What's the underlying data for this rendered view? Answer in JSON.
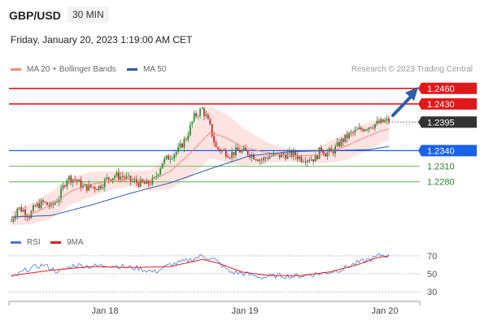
{
  "header": {
    "symbol": "GBP/USD",
    "timeframe": "30 MIN",
    "datetime": "Friday, January 20, 2023 1:19:00 AM CET",
    "credit": "Research © 2023 Trading Central"
  },
  "legend": {
    "main": [
      {
        "label": "MA 20 + Bollinger Bands",
        "color": "#f08a80"
      },
      {
        "label": "MA 50",
        "color": "#2e5aa8"
      }
    ],
    "rsi": [
      {
        "label": "RSI",
        "color": "#4a78d8"
      },
      {
        "label": "9MA",
        "color": "#e02020"
      }
    ]
  },
  "colors": {
    "up": "#2f8a3a",
    "down": "#c8282a",
    "ma20": "#f08a80",
    "band_fill": "#fde3e1",
    "ma50": "#2e5aa8",
    "resistance": "#e0181c",
    "pivot": "#1a62e8",
    "support": "#7fbf6f",
    "current": "#333333",
    "arrow": "#2c5fa3",
    "rsi": "#4a78d8",
    "rsi_ma": "#e02020"
  },
  "chart_data": [
    {
      "type": "candlestick",
      "title": "GBP/USD 30 MIN",
      "x_labels": [
        "Jan 18",
        "Jan 19",
        "Jan 20"
      ],
      "ylim": [
        1.2195,
        1.248
      ],
      "indicators": [
        "MA 20 + Bollinger Bands",
        "MA 50"
      ],
      "levels": [
        {
          "label": "1.2460",
          "value": 1.246,
          "kind": "resistance"
        },
        {
          "label": "1.2430",
          "value": 1.243,
          "kind": "resistance"
        },
        {
          "label": "1.2395",
          "value": 1.2395,
          "kind": "current"
        },
        {
          "label": "1.2340",
          "value": 1.234,
          "kind": "pivot"
        },
        {
          "label": "1.2310",
          "value": 1.231,
          "kind": "support"
        },
        {
          "label": "1.2280",
          "value": 1.228,
          "kind": "support"
        }
      ],
      "price_path": [
        [
          0,
          1.2204
        ],
        [
          3,
          1.223
        ],
        [
          6,
          1.2225
        ],
        [
          9,
          1.2215
        ],
        [
          12,
          1.2232
        ],
        [
          16,
          1.224
        ],
        [
          20,
          1.2232
        ],
        [
          24,
          1.225
        ],
        [
          28,
          1.2288
        ],
        [
          32,
          1.2285
        ],
        [
          36,
          1.227
        ],
        [
          40,
          1.227
        ],
        [
          44,
          1.227
        ],
        [
          48,
          1.2285
        ],
        [
          52,
          1.2292
        ],
        [
          56,
          1.229
        ],
        [
          60,
          1.2282
        ],
        [
          64,
          1.2278
        ],
        [
          68,
          1.2275
        ],
        [
          72,
          1.2284
        ],
        [
          76,
          1.2318
        ],
        [
          80,
          1.233
        ],
        [
          84,
          1.234
        ],
        [
          88,
          1.2365
        ],
        [
          92,
          1.2405
        ],
        [
          96,
          1.242
        ],
        [
          98,
          1.2405
        ],
        [
          100,
          1.2385
        ],
        [
          103,
          1.2345
        ],
        [
          106,
          1.234
        ],
        [
          110,
          1.2333
        ],
        [
          114,
          1.234
        ],
        [
          118,
          1.2338
        ],
        [
          122,
          1.233
        ],
        [
          126,
          1.2322
        ],
        [
          130,
          1.233
        ],
        [
          134,
          1.233
        ],
        [
          138,
          1.2332
        ],
        [
          142,
          1.2333
        ],
        [
          146,
          1.2325
        ],
        [
          150,
          1.2325
        ],
        [
          153,
          1.2325
        ],
        [
          156,
          1.2345
        ],
        [
          158,
          1.2335
        ],
        [
          162,
          1.234
        ],
        [
          166,
          1.2358
        ],
        [
          170,
          1.237
        ],
        [
          174,
          1.2378
        ],
        [
          178,
          1.2385
        ],
        [
          182,
          1.239
        ],
        [
          186,
          1.2394
        ],
        [
          190,
          1.2398
        ]
      ],
      "ma20_path": [
        [
          0,
          1.221
        ],
        [
          10,
          1.2218
        ],
        [
          20,
          1.2235
        ],
        [
          30,
          1.2262
        ],
        [
          40,
          1.2275
        ],
        [
          50,
          1.2282
        ],
        [
          60,
          1.2286
        ],
        [
          70,
          1.2282
        ],
        [
          80,
          1.23
        ],
        [
          90,
          1.2335
        ],
        [
          100,
          1.2375
        ],
        [
          108,
          1.2365
        ],
        [
          116,
          1.2348
        ],
        [
          126,
          1.2338
        ],
        [
          136,
          1.2332
        ],
        [
          146,
          1.233
        ],
        [
          156,
          1.2332
        ],
        [
          166,
          1.2345
        ],
        [
          176,
          1.2362
        ],
        [
          186,
          1.2378
        ],
        [
          190,
          1.2382
        ]
      ],
      "band_width_path": [
        [
          0,
          0.0014
        ],
        [
          10,
          0.002
        ],
        [
          20,
          0.0026
        ],
        [
          30,
          0.0026
        ],
        [
          40,
          0.0024
        ],
        [
          50,
          0.0018
        ],
        [
          60,
          0.0014
        ],
        [
          70,
          0.002
        ],
        [
          80,
          0.0034
        ],
        [
          90,
          0.0046
        ],
        [
          100,
          0.005
        ],
        [
          110,
          0.0045
        ],
        [
          120,
          0.0032
        ],
        [
          130,
          0.0018
        ],
        [
          140,
          0.0012
        ],
        [
          150,
          0.0012
        ],
        [
          160,
          0.002
        ],
        [
          170,
          0.0028
        ],
        [
          180,
          0.0026
        ],
        [
          190,
          0.0022
        ]
      ],
      "ma50_path": [
        [
          0,
          1.2212
        ],
        [
          20,
          1.2215
        ],
        [
          40,
          1.2235
        ],
        [
          60,
          1.2258
        ],
        [
          80,
          1.2278
        ],
        [
          100,
          1.2305
        ],
        [
          120,
          1.233
        ],
        [
          140,
          1.2338
        ],
        [
          160,
          1.234
        ],
        [
          180,
          1.2342
        ],
        [
          190,
          1.2348
        ]
      ]
    },
    {
      "type": "line",
      "title": "RSI",
      "series": [
        {
          "name": "RSI"
        },
        {
          "name": "9MA"
        }
      ],
      "ylim": [
        22,
        78
      ],
      "y_ticks": [
        70,
        50,
        30
      ],
      "rsi_path": [
        [
          0,
          45
        ],
        [
          8,
          55
        ],
        [
          16,
          60
        ],
        [
          24,
          52
        ],
        [
          32,
          60
        ],
        [
          40,
          58
        ],
        [
          48,
          60
        ],
        [
          56,
          58
        ],
        [
          64,
          56
        ],
        [
          72,
          52
        ],
        [
          80,
          60
        ],
        [
          88,
          64
        ],
        [
          96,
          70
        ],
        [
          102,
          66
        ],
        [
          110,
          52
        ],
        [
          118,
          50
        ],
        [
          126,
          46
        ],
        [
          134,
          48
        ],
        [
          142,
          47
        ],
        [
          150,
          49
        ],
        [
          158,
          51
        ],
        [
          166,
          55
        ],
        [
          174,
          62
        ],
        [
          182,
          67
        ],
        [
          186,
          71
        ],
        [
          190,
          70
        ]
      ],
      "ma_path": [
        [
          0,
          48
        ],
        [
          20,
          54
        ],
        [
          40,
          58
        ],
        [
          60,
          57
        ],
        [
          80,
          58
        ],
        [
          96,
          66
        ],
        [
          104,
          62
        ],
        [
          116,
          52
        ],
        [
          130,
          48
        ],
        [
          146,
          48
        ],
        [
          160,
          52
        ],
        [
          174,
          60
        ],
        [
          184,
          68
        ],
        [
          190,
          70
        ]
      ]
    }
  ]
}
